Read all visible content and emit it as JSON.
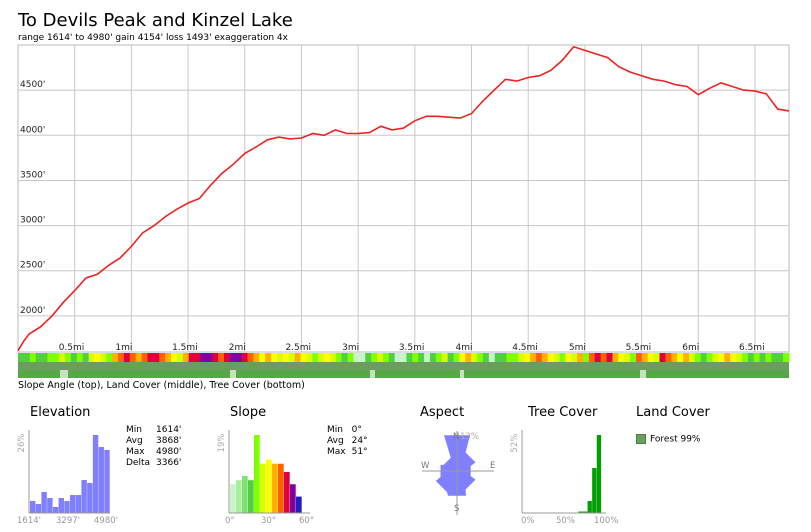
{
  "title": "To Devils Peak and Kinzel Lake",
  "subtitle": "range 1614' to 4980'  gain 4154'  loss 1493'  exaggeration 4x",
  "caption": "Slope Angle (top), Land Cover (middle), Tree Cover (bottom)",
  "chart_data": [
    {
      "type": "line",
      "name": "elevation-profile",
      "x_unit": "mi",
      "y_unit": "ft",
      "xlim": [
        0,
        6.8
      ],
      "ylim": [
        1600,
        5000
      ],
      "y_ticks": [
        2000,
        2500,
        3000,
        3500,
        4000,
        4500
      ],
      "y_tick_labels": [
        "2000'",
        "2500'",
        "3000'",
        "3500'",
        "4000'",
        "4500'"
      ],
      "x_ticks": [
        0.5,
        1,
        1.5,
        2,
        2.5,
        3,
        3.5,
        4,
        4.5,
        5,
        5.5,
        6,
        6.5
      ],
      "x_tick_labels": [
        "0.5mi",
        "1mi",
        "1.5mi",
        "2mi",
        "2.5mi",
        "3mi",
        "3.5mi",
        "4mi",
        "4.5mi",
        "5mi",
        "5.5mi",
        "6mi",
        "6.5mi"
      ],
      "grid": true,
      "color": "#ee2222",
      "x": [
        0,
        0.05,
        0.1,
        0.2,
        0.3,
        0.4,
        0.5,
        0.6,
        0.7,
        0.8,
        0.9,
        1.0,
        1.1,
        1.2,
        1.3,
        1.4,
        1.5,
        1.6,
        1.7,
        1.8,
        1.9,
        2.0,
        2.1,
        2.2,
        2.3,
        2.4,
        2.5,
        2.6,
        2.7,
        2.8,
        2.9,
        3.0,
        3.1,
        3.2,
        3.3,
        3.4,
        3.5,
        3.6,
        3.7,
        3.8,
        3.9,
        4.0,
        4.1,
        4.2,
        4.3,
        4.4,
        4.5,
        4.6,
        4.7,
        4.8,
        4.9,
        5.0,
        5.1,
        5.2,
        5.3,
        5.4,
        5.5,
        5.6,
        5.7,
        5.8,
        5.9,
        6.0,
        6.1,
        6.2,
        6.3,
        6.4,
        6.5,
        6.6,
        6.7,
        6.8
      ],
      "y": [
        1614,
        1720,
        1800,
        1880,
        2000,
        2150,
        2280,
        2420,
        2460,
        2560,
        2640,
        2770,
        2920,
        3000,
        3100,
        3180,
        3250,
        3300,
        3450,
        3580,
        3680,
        3800,
        3870,
        3950,
        3980,
        3960,
        3970,
        4020,
        4000,
        4060,
        4020,
        4020,
        4030,
        4100,
        4060,
        4080,
        4160,
        4210,
        4210,
        4200,
        4190,
        4240,
        4380,
        4500,
        4620,
        4600,
        4640,
        4660,
        4720,
        4830,
        4980,
        4940,
        4900,
        4860,
        4760,
        4700,
        4660,
        4620,
        4600,
        4560,
        4540,
        4450,
        4520,
        4580,
        4540,
        4500,
        4490,
        4460,
        4290,
        4270
      ]
    },
    {
      "type": "bar",
      "name": "elevation-histogram",
      "title": "Elevation",
      "y_max_label": "26%",
      "x_tick_labels": [
        "1614'",
        "3297'",
        "4980'"
      ],
      "color": "#8080ff",
      "values": [
        4,
        3,
        7,
        5,
        2,
        5,
        4,
        6,
        6,
        11,
        10,
        26,
        22,
        21
      ]
    },
    {
      "type": "bar",
      "name": "slope-histogram",
      "title": "Slope",
      "y_max_label": "19%",
      "x_tick_labels": [
        "0°",
        "30°",
        "60°"
      ],
      "values": [
        7,
        8,
        9,
        8,
        19,
        12,
        13,
        12,
        12,
        10,
        7,
        4
      ],
      "colors": [
        "#c8f5c8",
        "#a8f0a0",
        "#80e070",
        "#50d040",
        "#80ff00",
        "#d8ff00",
        "#ffff00",
        "#ffb000",
        "#ff6000",
        "#e00040",
        "#8000a0",
        "#2020c0"
      ]
    },
    {
      "type": "bar",
      "name": "tree-cover-histogram",
      "title": "Tree Cover",
      "y_max_label": "52%",
      "x_tick_labels": [
        "0%",
        "50%",
        "100%"
      ],
      "color": "#00a000",
      "values": [
        0,
        0,
        0,
        0,
        0,
        0,
        0,
        0,
        0,
        0,
        0,
        0,
        1,
        1,
        8,
        30,
        52,
        0
      ]
    }
  ],
  "stats": {
    "elevation": [
      {
        "label": "Min",
        "value": "1614'"
      },
      {
        "label": "Avg",
        "value": "3868'"
      },
      {
        "label": "Max",
        "value": "4980'"
      },
      {
        "label": "Delta",
        "value": "3366'"
      }
    ],
    "slope": [
      {
        "label": "Min",
        "value": "0°"
      },
      {
        "label": "Avg",
        "value": "24°"
      },
      {
        "label": "Max",
        "value": "51°"
      }
    ]
  },
  "aspect": {
    "title": "Aspect",
    "max_label": "13%",
    "labels": {
      "n": "N",
      "e": "E",
      "s": "S",
      "w": "W"
    },
    "values_by_direction": [
      13,
      7,
      5,
      7,
      9,
      8,
      6,
      5
    ],
    "color": "#8080ff"
  },
  "land_cover": {
    "title": "Land Cover",
    "legend": "Forest 99%",
    "color": "#6b9e5e"
  },
  "slope_strip": {
    "palette": [
      "#50d040",
      "#80ff00",
      "#d8ff00",
      "#ffff00",
      "#ffb000",
      "#ff6000",
      "#e00040",
      "#8000a0",
      "#c8f5c8"
    ],
    "sequence": [
      0,
      0,
      1,
      0,
      0,
      1,
      1,
      2,
      1,
      0,
      1,
      0,
      2,
      3,
      2,
      1,
      4,
      5,
      6,
      5,
      4,
      5,
      6,
      6,
      5,
      4,
      3,
      2,
      4,
      6,
      6,
      7,
      7,
      6,
      5,
      6,
      7,
      7,
      6,
      5,
      4,
      3,
      4,
      3,
      2,
      3,
      2,
      4,
      3,
      2,
      1,
      2,
      3,
      2,
      1,
      0,
      1,
      8,
      8,
      0,
      1,
      2,
      1,
      0,
      8,
      8,
      0,
      1,
      0,
      8,
      0,
      1,
      2,
      0,
      1,
      3,
      4,
      2,
      1,
      0,
      8,
      0,
      0,
      1,
      1,
      2,
      3,
      4,
      5,
      4,
      3,
      2,
      1,
      3,
      2,
      4,
      1,
      5,
      6,
      5,
      6,
      4,
      3,
      2,
      1,
      5,
      4,
      3,
      2,
      6,
      5,
      4,
      3,
      4,
      2,
      1,
      0,
      1,
      2,
      3,
      4,
      3,
      2,
      1,
      0,
      1,
      0,
      1,
      0,
      0,
      1
    ]
  }
}
